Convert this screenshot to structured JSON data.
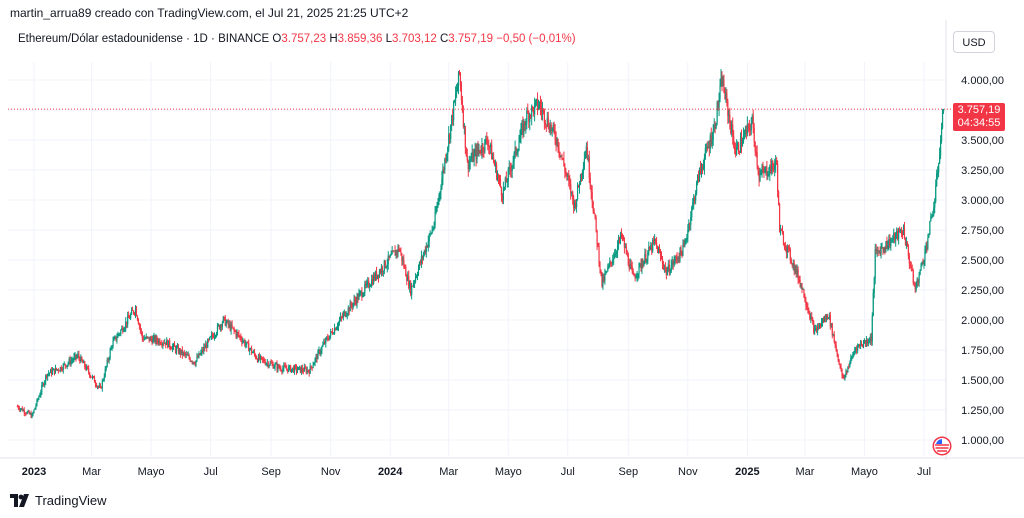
{
  "header": {
    "attribution": "martin_arrua89 creado con TradingView.com, el Jul 21, 2025 21:25 UTC+2"
  },
  "legend": {
    "symbol": "Ethereum/Dólar estadounidense · 1D · BINANCE",
    "open_label": "O",
    "open": "3.757,23",
    "high_label": "H",
    "high": "3.859,36",
    "low_label": "L",
    "low": "3.703,12",
    "close_label": "C",
    "close": "3.757,19",
    "change": "−0,50 (−0,01%)"
  },
  "toolbar": {
    "currency": "USD"
  },
  "price_tag": {
    "price": "3.757,19",
    "countdown": "04:34:55"
  },
  "footer": {
    "brand": "TradingView"
  },
  "colors": {
    "up": "#089981",
    "down": "#f23645",
    "grid": "#f0f3fa",
    "text": "#131722"
  },
  "icons": {
    "flag": "us-flag-icon",
    "logo": "tradingview-logo-icon"
  },
  "chart_data": {
    "type": "candlestick",
    "title": "Ethereum/Dólar estadounidense · 1D · BINANCE",
    "currency": "USD",
    "y_ticks": [
      {
        "value": 4000,
        "label": "4.000,00"
      },
      {
        "value": 3750,
        "label": "3.750,00"
      },
      {
        "value": 3500,
        "label": "3.500,00"
      },
      {
        "value": 3250,
        "label": "3.250,00"
      },
      {
        "value": 3000,
        "label": "3.000,00"
      },
      {
        "value": 2750,
        "label": "2.750,00"
      },
      {
        "value": 2500,
        "label": "2.500,00"
      },
      {
        "value": 2250,
        "label": "2.250,00"
      },
      {
        "value": 2000,
        "label": "2.000,00"
      },
      {
        "value": 1750,
        "label": "1.750,00"
      },
      {
        "value": 1500,
        "label": "1.500,00"
      },
      {
        "value": 1250,
        "label": "1.250,00"
      },
      {
        "value": 1000,
        "label": "1.000,00"
      }
    ],
    "x_ticks": [
      {
        "date": "2023-01-01",
        "label": "2023",
        "bold": true
      },
      {
        "date": "2023-03-01",
        "label": "Mar"
      },
      {
        "date": "2023-05-01",
        "label": "Mayo"
      },
      {
        "date": "2023-07-01",
        "label": "Jul"
      },
      {
        "date": "2023-09-01",
        "label": "Sep"
      },
      {
        "date": "2023-11-01",
        "label": "Nov"
      },
      {
        "date": "2024-01-01",
        "label": "2024",
        "bold": true
      },
      {
        "date": "2024-03-01",
        "label": "Mar"
      },
      {
        "date": "2024-05-01",
        "label": "Mayo"
      },
      {
        "date": "2024-07-01",
        "label": "Jul"
      },
      {
        "date": "2024-09-01",
        "label": "Sep"
      },
      {
        "date": "2024-11-01",
        "label": "Nov"
      },
      {
        "date": "2025-01-01",
        "label": "2025",
        "bold": true
      },
      {
        "date": "2025-03-01",
        "label": "Mar"
      },
      {
        "date": "2025-05-01",
        "label": "Mayo"
      },
      {
        "date": "2025-07-01",
        "label": "Jul"
      }
    ],
    "series": [
      {
        "name": "ETH/USD",
        "points": [
          {
            "x": "2022-12-15",
            "y": 1280
          },
          {
            "x": "2022-12-30",
            "y": 1200
          },
          {
            "x": "2023-01-14",
            "y": 1550
          },
          {
            "x": "2023-01-28",
            "y": 1600
          },
          {
            "x": "2023-02-15",
            "y": 1700
          },
          {
            "x": "2023-03-10",
            "y": 1420
          },
          {
            "x": "2023-03-22",
            "y": 1800
          },
          {
            "x": "2023-04-15",
            "y": 2100
          },
          {
            "x": "2023-04-22",
            "y": 1850
          },
          {
            "x": "2023-05-15",
            "y": 1820
          },
          {
            "x": "2023-06-15",
            "y": 1650
          },
          {
            "x": "2023-07-14",
            "y": 2000
          },
          {
            "x": "2023-08-01",
            "y": 1850
          },
          {
            "x": "2023-08-18",
            "y": 1680
          },
          {
            "x": "2023-09-10",
            "y": 1600
          },
          {
            "x": "2023-10-10",
            "y": 1580
          },
          {
            "x": "2023-10-25",
            "y": 1800
          },
          {
            "x": "2023-11-15",
            "y": 2050
          },
          {
            "x": "2023-12-10",
            "y": 2300
          },
          {
            "x": "2024-01-10",
            "y": 2600
          },
          {
            "x": "2024-01-22",
            "y": 2250
          },
          {
            "x": "2024-02-15",
            "y": 2800
          },
          {
            "x": "2024-03-12",
            "y": 4050
          },
          {
            "x": "2024-03-20",
            "y": 3300
          },
          {
            "x": "2024-04-10",
            "y": 3500
          },
          {
            "x": "2024-04-25",
            "y": 3050
          },
          {
            "x": "2024-05-20",
            "y": 3700
          },
          {
            "x": "2024-06-01",
            "y": 3800
          },
          {
            "x": "2024-06-20",
            "y": 3500
          },
          {
            "x": "2024-07-08",
            "y": 2950
          },
          {
            "x": "2024-07-20",
            "y": 3450
          },
          {
            "x": "2024-08-05",
            "y": 2300
          },
          {
            "x": "2024-08-25",
            "y": 2700
          },
          {
            "x": "2024-09-06",
            "y": 2350
          },
          {
            "x": "2024-09-28",
            "y": 2650
          },
          {
            "x": "2024-10-10",
            "y": 2400
          },
          {
            "x": "2024-10-28",
            "y": 2600
          },
          {
            "x": "2024-11-12",
            "y": 3200
          },
          {
            "x": "2024-11-28",
            "y": 3600
          },
          {
            "x": "2024-12-06",
            "y": 4000
          },
          {
            "x": "2024-12-20",
            "y": 3400
          },
          {
            "x": "2025-01-06",
            "y": 3650
          },
          {
            "x": "2025-01-13",
            "y": 3200
          },
          {
            "x": "2025-01-31",
            "y": 3300
          },
          {
            "x": "2025-02-03",
            "y": 2750
          },
          {
            "x": "2025-02-25",
            "y": 2300
          },
          {
            "x": "2025-03-11",
            "y": 1900
          },
          {
            "x": "2025-03-25",
            "y": 2050
          },
          {
            "x": "2025-04-09",
            "y": 1500
          },
          {
            "x": "2025-04-22",
            "y": 1770
          },
          {
            "x": "2025-05-08",
            "y": 1850
          },
          {
            "x": "2025-05-12",
            "y": 2550
          },
          {
            "x": "2025-06-10",
            "y": 2750
          },
          {
            "x": "2025-06-22",
            "y": 2250
          },
          {
            "x": "2025-07-03",
            "y": 2600
          },
          {
            "x": "2025-07-12",
            "y": 3000
          },
          {
            "x": "2025-07-21",
            "y": 3757.19
          }
        ]
      }
    ]
  }
}
